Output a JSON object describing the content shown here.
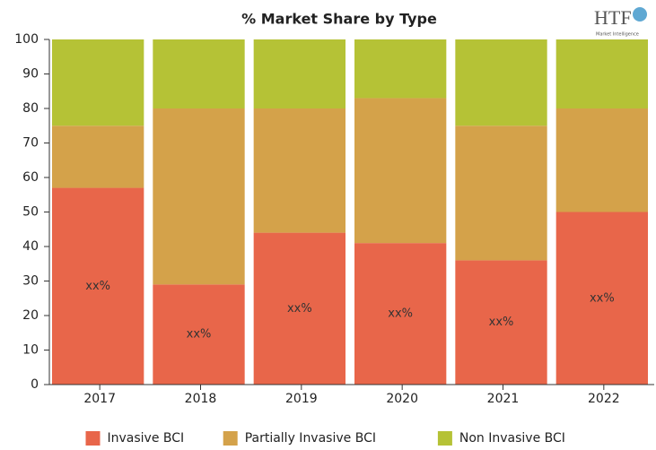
{
  "chart_data": {
    "type": "stacked_bar",
    "title": "% Market Share by Type",
    "categories": [
      "2017",
      "2018",
      "2019",
      "2020",
      "2021",
      "2022"
    ],
    "series": [
      {
        "name": "Invasive BCI",
        "color": "#e8664a",
        "values": [
          57,
          29,
          44,
          41,
          36,
          50
        ],
        "value_labels": [
          "xx%",
          "xx%",
          "xx%",
          "xx%",
          "xx%",
          "xx%"
        ]
      },
      {
        "name": "Partially Invasive BCI",
        "color": "#d4a24a",
        "values": [
          18,
          51,
          36,
          42,
          39,
          30
        ]
      },
      {
        "name": "Non Invasive BCI",
        "color": "#b5c236",
        "values": [
          25,
          20,
          20,
          17,
          25,
          20
        ]
      }
    ],
    "ylim": [
      0,
      100
    ],
    "yticks": [
      0,
      10,
      20,
      30,
      40,
      50,
      60,
      70,
      80,
      90,
      100
    ],
    "legend": "bottom"
  },
  "logo": {
    "name": "HTF",
    "tagline": "Market Intelligence"
  }
}
